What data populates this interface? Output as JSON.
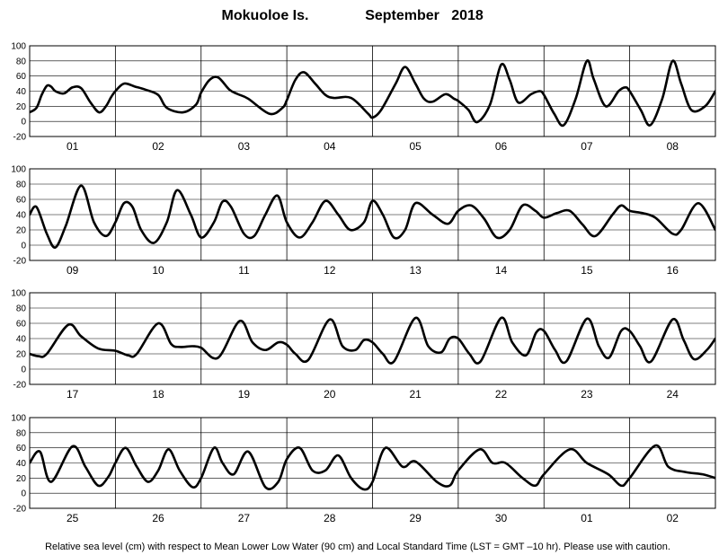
{
  "header": {
    "station": "Mokuoloe Is.",
    "period": "September   2018"
  },
  "footnote": "Relative sea level (cm) with respect to Mean Lower Low Water (90 cm) and Local Standard Time (LST = GMT –10 hr). Please use with caution.",
  "colors": {
    "line": "#000000",
    "background": "#ffffff"
  },
  "chart_data": [
    {
      "type": "line",
      "ylim": [
        -20,
        100
      ],
      "yticks": [
        -20,
        0,
        20,
        40,
        60,
        80,
        100
      ],
      "xlim": [
        0,
        8
      ],
      "days": [
        "01",
        "02",
        "03",
        "04",
        "05",
        "06",
        "07",
        "08"
      ],
      "x": [
        0,
        0.08,
        0.14,
        0.2,
        0.25,
        0.3,
        0.4,
        0.5,
        0.6,
        0.71,
        0.81,
        0.89,
        0.95,
        1,
        1.1,
        1.23,
        1.35,
        1.5,
        1.6,
        1.79,
        1.94,
        2,
        2.1,
        2.2,
        2.33,
        2.43,
        2.55,
        2.8,
        2.95,
        3,
        3.1,
        3.2,
        3.33,
        3.45,
        3.55,
        3.75,
        3.95,
        4,
        4.1,
        4.27,
        4.38,
        4.5,
        4.6,
        4.7,
        4.85,
        4.95,
        5,
        5.12,
        5.22,
        5.37,
        5.5,
        5.6,
        5.7,
        5.85,
        5.95,
        6,
        6.12,
        6.23,
        6.37,
        6.5,
        6.58,
        6.72,
        6.87,
        6.95,
        7,
        7.13,
        7.24,
        7.38,
        7.5,
        7.6,
        7.72,
        7.88,
        8
      ],
      "y": [
        12,
        18,
        35,
        47,
        46,
        40,
        37,
        45,
        44,
        25,
        12,
        20,
        32,
        40,
        50,
        46,
        42,
        35,
        18,
        12,
        22,
        38,
        55,
        58,
        42,
        36,
        30,
        10,
        18,
        28,
        55,
        65,
        50,
        35,
        31,
        31,
        10,
        5,
        15,
        50,
        72,
        50,
        30,
        26,
        36,
        30,
        27,
        15,
        -1,
        22,
        75,
        55,
        25,
        36,
        40,
        35,
        10,
        -5,
        30,
        80,
        56,
        20,
        40,
        45,
        40,
        15,
        -5,
        30,
        80,
        50,
        15,
        20,
        40
      ]
    },
    {
      "type": "line",
      "ylim": [
        -20,
        100
      ],
      "yticks": [
        -20,
        0,
        20,
        40,
        60,
        80,
        100
      ],
      "xlim": [
        0,
        8
      ],
      "days": [
        "09",
        "10",
        "11",
        "12",
        "13",
        "14",
        "15",
        "16"
      ],
      "x": [
        0,
        0.08,
        0.2,
        0.3,
        0.42,
        0.6,
        0.75,
        0.89,
        1,
        1.1,
        1.2,
        1.3,
        1.45,
        1.6,
        1.72,
        1.88,
        2,
        2.15,
        2.25,
        2.35,
        2.5,
        2.62,
        2.75,
        2.89,
        3,
        3.15,
        3.3,
        3.45,
        3.6,
        3.74,
        3.9,
        4,
        4.12,
        4.25,
        4.38,
        4.5,
        4.7,
        4.88,
        5,
        5.15,
        5.3,
        5.45,
        5.6,
        5.75,
        5.9,
        6,
        6.15,
        6.3,
        6.45,
        6.6,
        6.8,
        6.9,
        7,
        7.15,
        7.3,
        7.5,
        7.6,
        7.8,
        8
      ],
      "y": [
        40,
        50,
        15,
        -3,
        25,
        78,
        30,
        12,
        30,
        55,
        50,
        20,
        3,
        30,
        72,
        40,
        10,
        30,
        57,
        50,
        15,
        12,
        40,
        65,
        30,
        10,
        30,
        58,
        40,
        20,
        30,
        58,
        40,
        10,
        20,
        55,
        40,
        28,
        45,
        52,
        35,
        10,
        20,
        52,
        45,
        36,
        42,
        45,
        27,
        12,
        40,
        52,
        45,
        42,
        36,
        15,
        20,
        55,
        20
      ]
    },
    {
      "type": "line",
      "ylim": [
        -20,
        100
      ],
      "yticks": [
        -20,
        0,
        20,
        40,
        60,
        80,
        100
      ],
      "xlim": [
        0,
        8
      ],
      "days": [
        "17",
        "18",
        "19",
        "20",
        "21",
        "22",
        "23",
        "24"
      ],
      "x": [
        0,
        0.1,
        0.2,
        0.45,
        0.6,
        0.8,
        1,
        1.15,
        1.25,
        1.5,
        1.65,
        1.75,
        1.9,
        2,
        2.2,
        2.45,
        2.6,
        2.75,
        2.9,
        3,
        3.1,
        3.25,
        3.5,
        3.65,
        3.8,
        3.9,
        4,
        4.12,
        4.25,
        4.5,
        4.65,
        4.8,
        4.9,
        5,
        5.13,
        5.26,
        5.5,
        5.63,
        5.79,
        5.91,
        6,
        6.13,
        6.26,
        6.5,
        6.64,
        6.76,
        6.9,
        7,
        7.12,
        7.25,
        7.5,
        7.63,
        7.75,
        7.9,
        8
      ],
      "y": [
        20,
        17,
        20,
        58,
        43,
        27,
        24,
        18,
        20,
        60,
        33,
        29,
        30,
        28,
        15,
        63,
        35,
        25,
        35,
        32,
        20,
        12,
        65,
        30,
        25,
        38,
        35,
        20,
        10,
        67,
        30,
        22,
        40,
        40,
        20,
        10,
        67,
        35,
        18,
        48,
        50,
        25,
        10,
        66,
        30,
        15,
        50,
        50,
        30,
        10,
        65,
        38,
        13,
        25,
        40
      ]
    },
    {
      "type": "line",
      "ylim": [
        -20,
        100
      ],
      "yticks": [
        -20,
        0,
        20,
        40,
        60,
        80,
        100
      ],
      "xlim": [
        0,
        8
      ],
      "days": [
        "25",
        "26",
        "27",
        "28",
        "29",
        "30",
        "01",
        "02"
      ],
      "x": [
        0,
        0.12,
        0.25,
        0.5,
        0.65,
        0.8,
        0.92,
        1,
        1.12,
        1.25,
        1.38,
        1.5,
        1.62,
        1.75,
        1.9,
        2,
        2.15,
        2.25,
        2.38,
        2.55,
        2.75,
        2.9,
        3,
        3.15,
        3.3,
        3.45,
        3.6,
        3.75,
        3.9,
        4,
        4.15,
        4.35,
        4.5,
        4.75,
        4.9,
        5,
        5.25,
        5.4,
        5.55,
        5.75,
        5.9,
        6,
        6.3,
        6.5,
        6.75,
        6.9,
        7,
        7.3,
        7.45,
        7.65,
        7.85,
        8
      ],
      "y": [
        40,
        55,
        15,
        62,
        35,
        10,
        22,
        40,
        60,
        35,
        15,
        30,
        58,
        30,
        8,
        20,
        60,
        40,
        25,
        55,
        8,
        15,
        45,
        60,
        30,
        30,
        50,
        20,
        5,
        15,
        60,
        35,
        42,
        15,
        10,
        30,
        58,
        40,
        40,
        20,
        10,
        25,
        58,
        40,
        25,
        10,
        20,
        63,
        35,
        28,
        25,
        20
      ]
    }
  ]
}
